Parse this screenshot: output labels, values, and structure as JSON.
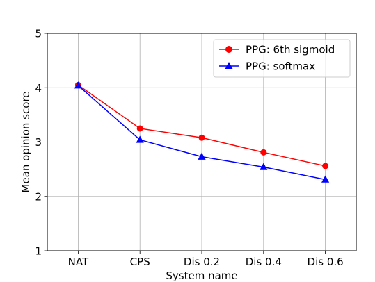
{
  "chart_data": {
    "type": "line",
    "categories": [
      "NAT",
      "CPS",
      "Dis 0.2",
      "Dis 0.4",
      "Dis 0.6"
    ],
    "series": [
      {
        "name": "PPG: 6th sigmoid",
        "values": [
          4.05,
          3.25,
          3.08,
          2.81,
          2.56
        ],
        "color": "#ff0000",
        "marker": "circle"
      },
      {
        "name": "PPG: softmax",
        "values": [
          4.04,
          3.04,
          2.73,
          2.54,
          2.31
        ],
        "color": "#0000ff",
        "marker": "triangle"
      }
    ],
    "yticks": [
      1,
      2,
      3,
      4,
      5
    ],
    "ylim": [
      1,
      5
    ],
    "xlabel": "System name",
    "ylabel": "Mean opinion score",
    "grid": true,
    "legend_position": "top-right"
  }
}
